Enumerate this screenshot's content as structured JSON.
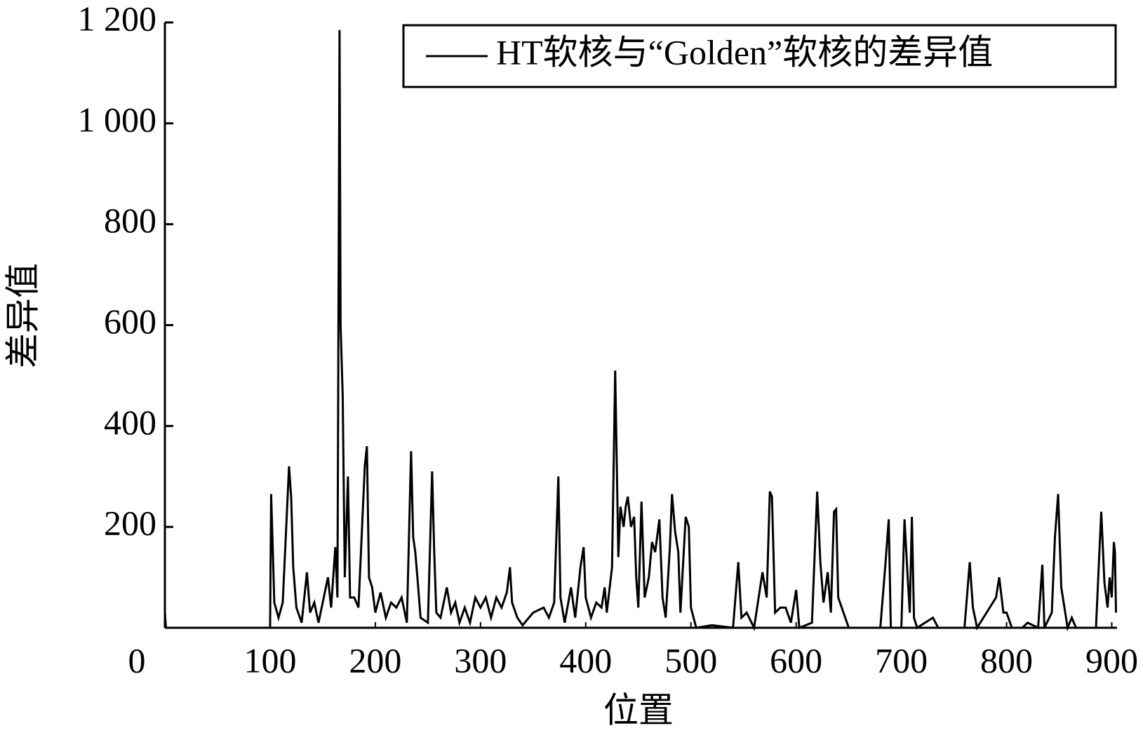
{
  "chart_data": {
    "type": "line",
    "x_label": "位置",
    "y_label": "差异值",
    "legend": "upper right",
    "xlim": [
      0,
      905
    ],
    "ylim": [
      0,
      1200
    ],
    "xticks": [
      0,
      100,
      200,
      300,
      400,
      500,
      600,
      700,
      800,
      900
    ],
    "yticks": [
      200,
      400,
      600,
      800,
      {
        "value": 1000,
        "label": "1 000"
      },
      {
        "value": 1200,
        "label": "1 200"
      }
    ],
    "x": [
      0,
      1,
      100,
      101,
      104,
      108,
      112,
      116,
      118,
      120,
      122,
      125,
      130,
      135,
      138,
      142,
      146,
      150,
      155,
      158,
      162,
      164,
      166,
      167,
      169,
      171,
      174,
      176,
      180,
      184,
      190,
      192,
      194,
      197,
      200,
      205,
      210,
      215,
      220,
      225,
      230,
      234,
      236,
      238,
      240,
      243,
      250,
      254,
      256,
      258,
      262,
      268,
      272,
      276,
      280,
      285,
      290,
      295,
      300,
      305,
      310,
      315,
      320,
      325,
      328,
      330,
      335,
      340,
      350,
      360,
      365,
      370,
      374,
      376,
      380,
      386,
      390,
      395,
      398,
      400,
      405,
      410,
      415,
      418,
      420,
      425,
      428,
      431,
      433,
      436,
      438,
      440,
      443,
      446,
      448,
      450,
      453,
      456,
      460,
      463,
      466,
      470,
      473,
      476,
      480,
      482,
      485,
      488,
      490,
      495,
      498,
      500,
      505,
      520,
      540,
      545,
      548,
      553,
      560,
      568,
      572,
      575,
      577,
      580,
      585,
      590,
      595,
      600,
      603,
      615,
      620,
      623,
      626,
      630,
      633,
      636,
      638,
      640,
      645,
      650,
      680,
      685,
      688,
      690,
      700,
      703,
      706,
      708,
      710,
      712,
      715,
      730,
      735,
      760,
      765,
      768,
      772,
      790,
      793,
      797,
      800,
      805,
      815,
      820,
      830,
      834,
      836,
      843,
      846,
      849,
      852,
      858,
      862,
      866,
      885,
      888,
      890,
      893,
      896,
      898,
      900,
      902,
      903,
      904
    ],
    "series": [
      {
        "name": "HT软核与“Golden”软核的差异值",
        "color": "#000000",
        "values": [
          30,
          0,
          0,
          265,
          50,
          20,
          50,
          230,
          320,
          260,
          120,
          40,
          10,
          110,
          30,
          50,
          10,
          50,
          100,
          40,
          160,
          60,
          1185,
          600,
          460,
          100,
          300,
          60,
          60,
          40,
          320,
          360,
          100,
          80,
          30,
          70,
          20,
          50,
          40,
          60,
          10,
          350,
          180,
          150,
          100,
          20,
          10,
          310,
          150,
          30,
          20,
          80,
          30,
          50,
          10,
          40,
          10,
          60,
          40,
          60,
          20,
          60,
          40,
          70,
          120,
          50,
          20,
          5,
          30,
          40,
          20,
          50,
          300,
          60,
          10,
          80,
          20,
          120,
          160,
          60,
          20,
          50,
          40,
          80,
          30,
          120,
          510,
          140,
          240,
          200,
          240,
          260,
          200,
          220,
          100,
          40,
          250,
          60,
          100,
          170,
          150,
          215,
          60,
          20,
          160,
          265,
          190,
          150,
          30,
          220,
          200,
          40,
          0,
          5,
          0,
          130,
          20,
          30,
          0,
          110,
          60,
          270,
          260,
          30,
          40,
          40,
          10,
          75,
          0,
          10,
          270,
          130,
          50,
          110,
          30,
          230,
          235,
          60,
          30,
          0,
          0,
          130,
          215,
          0,
          0,
          215,
          100,
          30,
          220,
          20,
          0,
          20,
          0,
          0,
          130,
          40,
          0,
          60,
          100,
          30,
          30,
          0,
          0,
          10,
          0,
          125,
          0,
          30,
          180,
          265,
          80,
          0,
          20,
          0,
          0,
          140,
          230,
          90,
          40,
          100,
          60,
          170,
          150,
          30
        ]
      }
    ]
  }
}
